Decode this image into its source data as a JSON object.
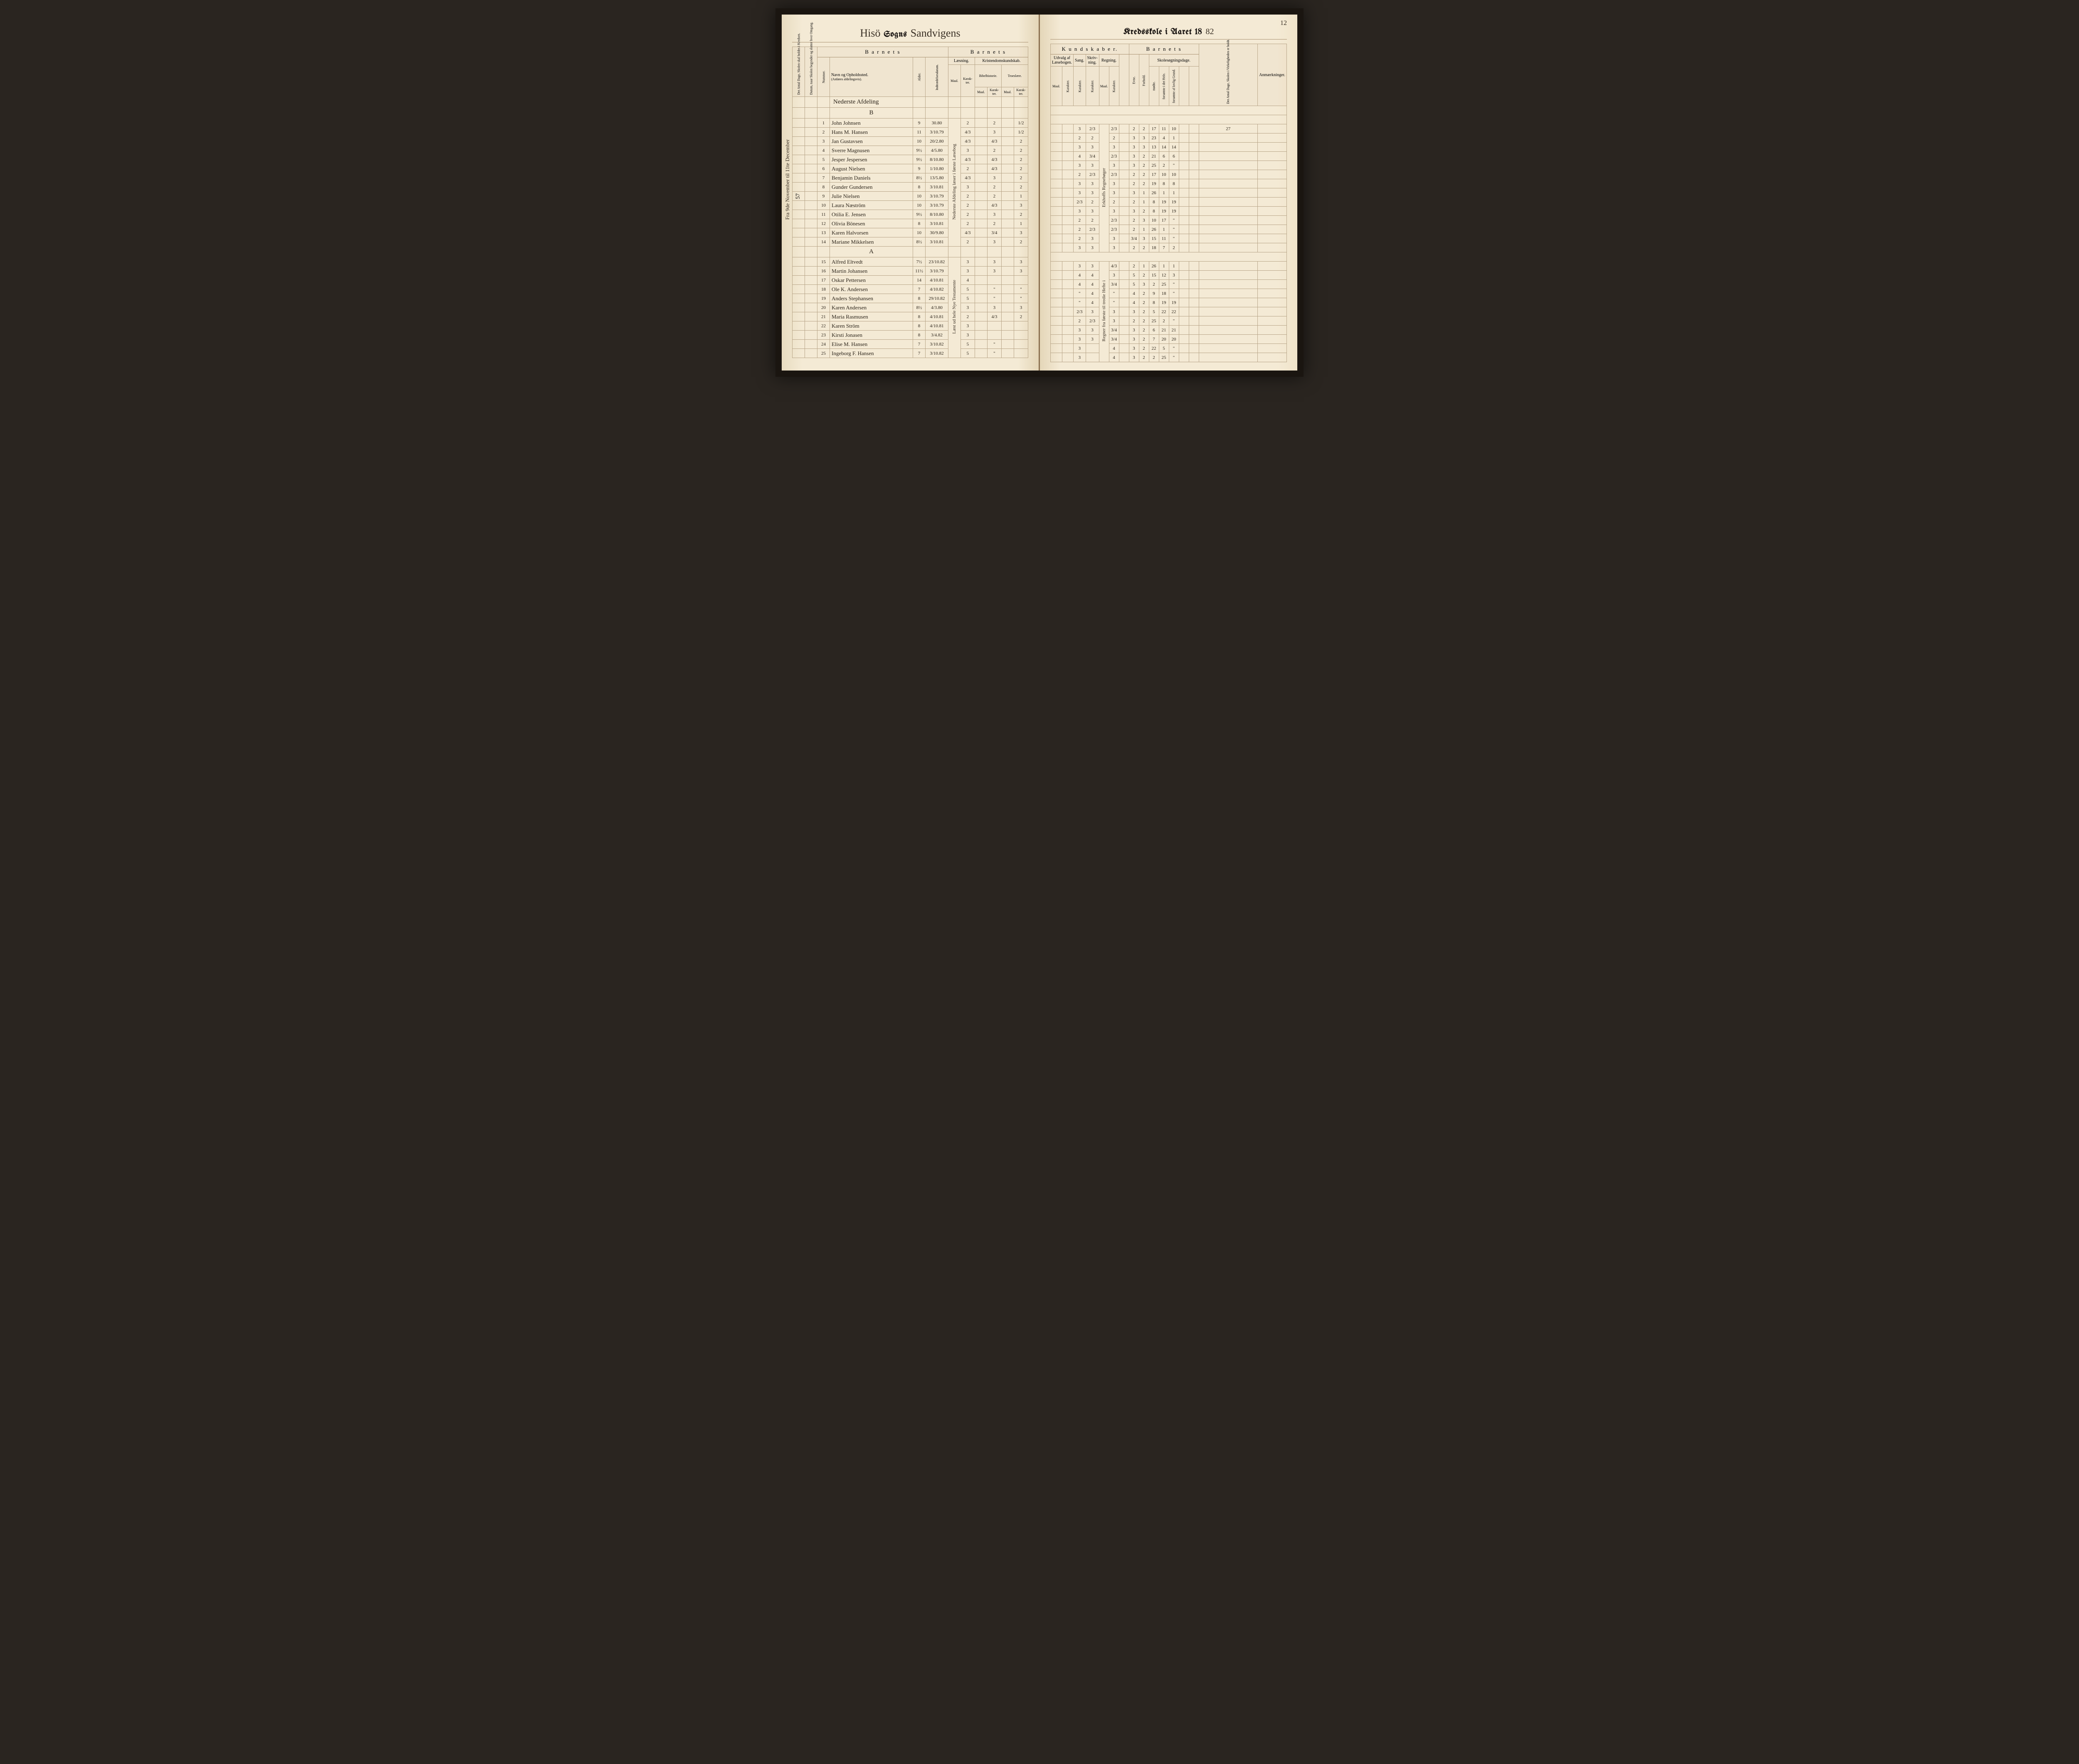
{
  "pageNumber": "12",
  "leftTitle": {
    "script1": "Hisö",
    "black": "Sogns",
    "script2": "Sandvigens"
  },
  "rightTitle": {
    "black1": "Kredsskole i Aaret 18",
    "fill": "82"
  },
  "barnetsLabel": "B a r n e t s",
  "kundskaberLabel": "K u n d s k a b e r.",
  "leftHeaders": {
    "antalDage": "Det Antal Dage, Skolen skal holdes i Kredsen.",
    "datum": "Datum, naar Skolen begynder og slutter hver Omgang.",
    "nummer": "Nummer.",
    "navn": "Navn og Opholdssted.",
    "navnSub": "(Anføres afdelingsvis).",
    "alder": "Alder.",
    "indtraed": "Indtrædelsesdatum.",
    "laesning": "Læsning.",
    "kristendom": "Kristendomskundskab.",
    "bibel": "Bibelhistorie.",
    "troes": "Troeslære.",
    "maal": "Maal.",
    "karakter": "Karak-ter."
  },
  "rightHeaders": {
    "udvalg": "Udvalg af Læsebogen.",
    "sang": "Sang.",
    "skrivning": "Skriv-ning.",
    "regning": "Regning.",
    "skolesogning": "Skolesøgningsdage.",
    "evne": "Evne.",
    "forhold": "Forhold.",
    "modte": "mødte.",
    "forsomte1": "forsømte i det Hele.",
    "forsomte2": "forsømte af lovlig Grund.",
    "antalVirk": "Det Antal Dage, Skolen i Virkeligheden er holdt.",
    "anmerk": "Anmærkninger.",
    "maal": "Maal.",
    "karakter": "Karakter."
  },
  "sectionA": "Nederste Afdeling",
  "sectionA2": "B",
  "sectionB": "A",
  "marginNote": "Fra 9de November til 11te December",
  "marginNote2": "57",
  "colNoteLeft": "Nederste Afdeling læser i første Læsebog",
  "colNoteLeft2": "Læst ud hele Nye Testamente",
  "colNoteLeft3": "Læst hele den første Bog og en del af Katekismen",
  "colNoteRight": "Erkhoffs Regnebøger",
  "colNoteRight2": "Regner fra første til tredie Hefte i",
  "rows": [
    {
      "n": "1",
      "name": "John Johnsen",
      "age": "9",
      "date": "30.80",
      "l1": "",
      "l2": "2",
      "b1": "",
      "b2": "2",
      "t1": "",
      "t2": "1/2",
      "u1": "",
      "u2": "",
      "s": "3",
      "sk": "2/3",
      "rm": "",
      "rk": "2/3",
      "e": "2",
      "f": "2",
      "m": "17",
      "f1": "11",
      "f2": "10",
      "tot": "27"
    },
    {
      "n": "2",
      "name": "Hans M. Hansen",
      "age": "11",
      "date": "3/10.79",
      "l1": "",
      "l2": "4/3",
      "b1": "",
      "b2": "3",
      "t1": "",
      "t2": "1/2",
      "u1": "",
      "u2": "",
      "s": "2",
      "sk": "2",
      "rm": "",
      "rk": "2",
      "e": "3",
      "f": "3",
      "m": "23",
      "f1": "4",
      "f2": "1",
      "tot": ""
    },
    {
      "n": "3",
      "name": "Jan Gustavsen",
      "age": "10",
      "date": "20/2.80",
      "l1": "",
      "l2": "4/3",
      "b1": "",
      "b2": "4/3",
      "t1": "",
      "t2": "2",
      "u1": "",
      "u2": "",
      "s": "3",
      "sk": "3",
      "rm": "",
      "rk": "3",
      "e": "3",
      "f": "3",
      "m": "13",
      "f1": "14",
      "f2": "14",
      "tot": ""
    },
    {
      "n": "4",
      "name": "Sverre Magnusen",
      "age": "9½",
      "date": "4/5.80",
      "l1": "",
      "l2": "3",
      "b1": "",
      "b2": "2",
      "t1": "",
      "t2": "2",
      "u1": "",
      "u2": "",
      "s": "4",
      "sk": "3/4",
      "rm": "",
      "rk": "2/3",
      "e": "3",
      "f": "2",
      "m": "21",
      "f1": "6",
      "f2": "6",
      "tot": ""
    },
    {
      "n": "5",
      "name": "Jesper Jespersen",
      "age": "9½",
      "date": "8/10.80",
      "l1": "",
      "l2": "4/3",
      "b1": "",
      "b2": "4/3",
      "t1": "",
      "t2": "2",
      "u1": "",
      "u2": "",
      "s": "3",
      "sk": "3",
      "rm": "",
      "rk": "3",
      "e": "3",
      "f": "2",
      "m": "25",
      "f1": "2",
      "f2": "\"",
      "tot": ""
    },
    {
      "n": "6",
      "name": "August Nielsen",
      "age": "9",
      "date": "1/10.80",
      "l1": "",
      "l2": "2",
      "b1": "",
      "b2": "4/3",
      "t1": "",
      "t2": "2",
      "u1": "",
      "u2": "",
      "s": "2",
      "sk": "2/3",
      "rm": "",
      "rk": "2/3",
      "e": "2",
      "f": "2",
      "m": "17",
      "f1": "10",
      "f2": "10",
      "tot": ""
    },
    {
      "n": "7",
      "name": "Benjamin Daniels",
      "age": "8½",
      "date": "13/5.80",
      "l1": "",
      "l2": "4/3",
      "b1": "",
      "b2": "3",
      "t1": "",
      "t2": "2",
      "u1": "",
      "u2": "",
      "s": "3",
      "sk": "3",
      "rm": "",
      "rk": "3",
      "e": "2",
      "f": "2",
      "m": "19",
      "f1": "8",
      "f2": "8",
      "tot": ""
    },
    {
      "n": "8",
      "name": "Gunder Gundersen",
      "age": "8",
      "date": "3/10.81",
      "l1": "",
      "l2": "3",
      "b1": "",
      "b2": "2",
      "t1": "",
      "t2": "2",
      "u1": "",
      "u2": "",
      "s": "3",
      "sk": "3",
      "rm": "",
      "rk": "3",
      "e": "3",
      "f": "1",
      "m": "26",
      "f1": "1",
      "f2": "1",
      "tot": ""
    },
    {
      "n": "9",
      "name": "Julie Nielsen",
      "age": "10",
      "date": "3/10.79",
      "l1": "",
      "l2": "2",
      "b1": "",
      "b2": "2",
      "t1": "",
      "t2": "1",
      "u1": "",
      "u2": "",
      "s": "2/3",
      "sk": "2",
      "rm": "",
      "rk": "2",
      "e": "2",
      "f": "1",
      "m": "8",
      "f1": "19",
      "f2": "19",
      "tot": ""
    },
    {
      "n": "10",
      "name": "Laura Næström",
      "age": "10",
      "date": "3/10.79",
      "l1": "",
      "l2": "2",
      "b1": "",
      "b2": "4/3",
      "t1": "",
      "t2": "3",
      "u1": "",
      "u2": "",
      "s": "3",
      "sk": "3",
      "rm": "",
      "rk": "3",
      "e": "3",
      "f": "2",
      "m": "8",
      "f1": "19",
      "f2": "19",
      "tot": ""
    },
    {
      "n": "11",
      "name": "Otilia E. Jensen",
      "age": "9½",
      "date": "8/10.80",
      "l1": "",
      "l2": "2",
      "b1": "",
      "b2": "3",
      "t1": "",
      "t2": "2",
      "u1": "",
      "u2": "",
      "s": "2",
      "sk": "2",
      "rm": "",
      "rk": "2/3",
      "e": "2",
      "f": "3",
      "m": "10",
      "f1": "17",
      "f2": "\"",
      "tot": ""
    },
    {
      "n": "12",
      "name": "Olivia Bönesen",
      "age": "8",
      "date": "3/10.81",
      "l1": "",
      "l2": "2",
      "b1": "",
      "b2": "2",
      "t1": "",
      "t2": "1",
      "u1": "",
      "u2": "",
      "s": "2",
      "sk": "2/3",
      "rm": "",
      "rk": "2/3",
      "e": "2",
      "f": "1",
      "m": "26",
      "f1": "1",
      "f2": "\"",
      "tot": ""
    },
    {
      "n": "13",
      "name": "Karen Halvorsen",
      "age": "10",
      "date": "30/9.80",
      "l1": "",
      "l2": "4/3",
      "b1": "",
      "b2": "3/4",
      "t1": "",
      "t2": "3",
      "u1": "",
      "u2": "",
      "s": "2",
      "sk": "3",
      "rm": "",
      "rk": "3",
      "e": "3/4",
      "f": "3",
      "m": "15",
      "f1": "11",
      "f2": "\"",
      "tot": ""
    },
    {
      "n": "14",
      "name": "Mariane Mikkelsen",
      "age": "8½",
      "date": "3/10.81",
      "l1": "",
      "l2": "2",
      "b1": "",
      "b2": "3",
      "t1": "",
      "t2": "2",
      "u1": "",
      "u2": "",
      "s": "3",
      "sk": "3",
      "rm": "",
      "rk": "3",
      "e": "2",
      "f": "2",
      "m": "18",
      "f1": "7",
      "f2": "2",
      "tot": ""
    }
  ],
  "rowsB": [
    {
      "n": "15",
      "name": "Alfred Eltvedt",
      "age": "7½",
      "date": "23/10.82",
      "l1": "",
      "l2": "3",
      "b1": "",
      "b2": "3",
      "t1": "",
      "t2": "3",
      "u1": "",
      "u2": "",
      "s": "3",
      "sk": "3",
      "rm": "",
      "rk": "4/3",
      "e": "2",
      "f": "1",
      "m": "26",
      "f1": "1",
      "f2": "1",
      "tot": ""
    },
    {
      "n": "16",
      "name": "Martin Johansen",
      "age": "11½",
      "date": "3/10.79",
      "l1": "",
      "l2": "3",
      "b1": "",
      "b2": "3",
      "t1": "",
      "t2": "3",
      "u1": "",
      "u2": "",
      "s": "4",
      "sk": "4",
      "rm": "",
      "rk": "3",
      "e": "5",
      "f": "2",
      "m": "15",
      "f1": "12",
      "f2": "3",
      "tot": ""
    },
    {
      "n": "17",
      "name": "Oskar Pettersen",
      "age": "14",
      "date": "4/10.81",
      "l1": "",
      "l2": "4",
      "b1": "",
      "b2": "",
      "t1": "",
      "t2": "",
      "u1": "",
      "u2": "",
      "s": "4",
      "sk": "4",
      "rm": "",
      "rk": "3/4",
      "e": "5",
      "f": "3",
      "m": "2",
      "f1": "25",
      "f2": "\"",
      "tot": ""
    },
    {
      "n": "18",
      "name": "Ole K. Andersen",
      "age": "7",
      "date": "4/10.82",
      "l1": "",
      "l2": "5",
      "b1": "",
      "b2": "\"",
      "t1": "",
      "t2": "\"",
      "u1": "",
      "u2": "",
      "s": "\"",
      "sk": "4",
      "rm": "",
      "rk": "\"",
      "e": "4",
      "f": "2",
      "m": "9",
      "f1": "18",
      "f2": "\"",
      "tot": ""
    },
    {
      "n": "19",
      "name": "Anders Stephansen",
      "age": "8",
      "date": "29/10.82",
      "l1": "",
      "l2": "5",
      "b1": "",
      "b2": "\"",
      "t1": "",
      "t2": "\"",
      "u1": "",
      "u2": "",
      "s": "\"",
      "sk": "4",
      "rm": "",
      "rk": "\"",
      "e": "4",
      "f": "2",
      "m": "8",
      "f1": "19",
      "f2": "19",
      "tot": ""
    },
    {
      "n": "20",
      "name": "Karen Andersen",
      "age": "8½",
      "date": "4/3.80",
      "l1": "",
      "l2": "3",
      "b1": "",
      "b2": "3",
      "t1": "",
      "t2": "3",
      "u1": "",
      "u2": "",
      "s": "2/3",
      "sk": "3",
      "rm": "",
      "rk": "3",
      "e": "3",
      "f": "2",
      "m": "5",
      "f1": "22",
      "f2": "22",
      "tot": ""
    },
    {
      "n": "21",
      "name": "Maria Rasmusen",
      "age": "8",
      "date": "4/10.81",
      "l1": "",
      "l2": "2",
      "b1": "",
      "b2": "4/3",
      "t1": "",
      "t2": "2",
      "u1": "",
      "u2": "",
      "s": "2",
      "sk": "2/3",
      "rm": "",
      "rk": "3",
      "e": "2",
      "f": "2",
      "m": "25",
      "f1": "2",
      "f2": "\"",
      "tot": ""
    },
    {
      "n": "22",
      "name": "Karen Ström",
      "age": "8",
      "date": "4/10.81",
      "l1": "",
      "l2": "3",
      "b1": "",
      "b2": "",
      "t1": "",
      "t2": "",
      "u1": "",
      "u2": "",
      "s": "3",
      "sk": "3",
      "rm": "",
      "rk": "3/4",
      "e": "3",
      "f": "2",
      "m": "6",
      "f1": "21",
      "f2": "21",
      "tot": ""
    },
    {
      "n": "23",
      "name": "Kirsti Jonasen",
      "age": "8",
      "date": "3/4.82",
      "l1": "",
      "l2": "3",
      "b1": "",
      "b2": "",
      "t1": "",
      "t2": "",
      "u1": "",
      "u2": "",
      "s": "3",
      "sk": "3",
      "rm": "",
      "rk": "3/4",
      "e": "3",
      "f": "2",
      "m": "7",
      "f1": "20",
      "f2": "20",
      "tot": ""
    },
    {
      "n": "24",
      "name": "Elise M. Hansen",
      "age": "7",
      "date": "3/10.82",
      "l1": "",
      "l2": "5",
      "b1": "",
      "b2": "\"",
      "t1": "",
      "t2": "",
      "u1": "",
      "u2": "",
      "s": "3",
      "sk": "",
      "rm": "",
      "rk": "4",
      "e": "3",
      "f": "2",
      "m": "22",
      "f1": "5",
      "f2": "\"",
      "tot": ""
    },
    {
      "n": "25",
      "name": "Ingeborg F. Hansen",
      "age": "7",
      "date": "3/10.82",
      "l1": "",
      "l2": "5",
      "b1": "",
      "b2": "\"",
      "t1": "",
      "t2": "",
      "u1": "",
      "u2": "",
      "s": "3",
      "sk": "",
      "rm": "",
      "rk": "4",
      "e": "3",
      "f": "2",
      "m": "2",
      "f1": "25",
      "f2": "\"",
      "tot": ""
    }
  ]
}
